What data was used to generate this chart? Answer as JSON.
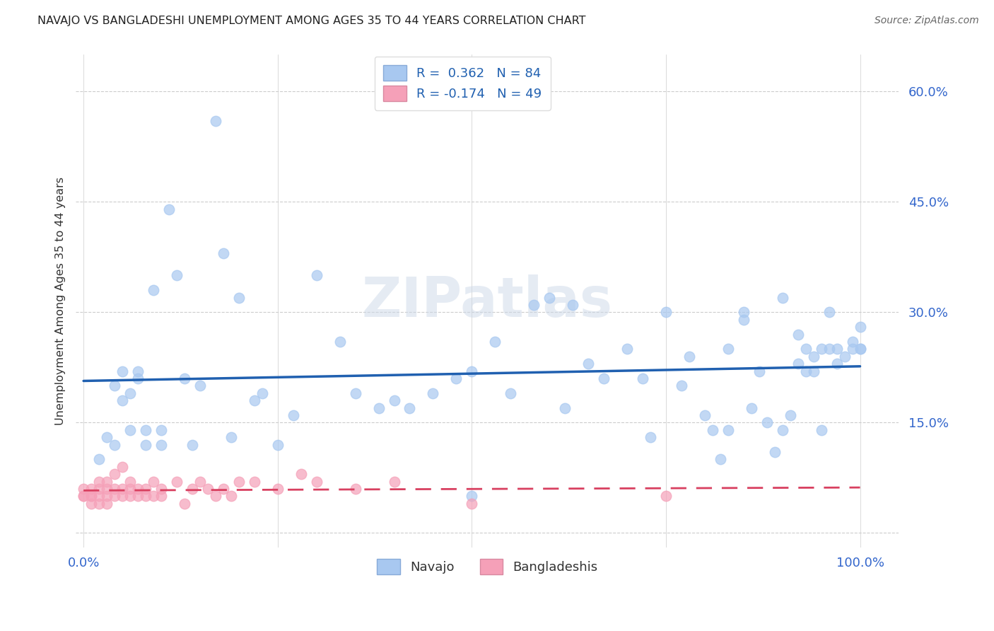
{
  "title": "NAVAJO VS BANGLADESHI UNEMPLOYMENT AMONG AGES 35 TO 44 YEARS CORRELATION CHART",
  "source": "Source: ZipAtlas.com",
  "ylabel_label": "Unemployment Among Ages 35 to 44 years",
  "navajo_color": "#a8c8f0",
  "bangladeshi_color": "#f5a0b8",
  "navajo_line_color": "#2060b0",
  "bangladeshi_line_color": "#d84060",
  "watermark_text": "ZIPatlas",
  "navajo_x": [
    2,
    3,
    4,
    4,
    5,
    5,
    6,
    6,
    7,
    7,
    8,
    8,
    9,
    10,
    10,
    11,
    12,
    13,
    14,
    15,
    17,
    18,
    19,
    20,
    22,
    23,
    25,
    27,
    30,
    33,
    35,
    38,
    40,
    42,
    45,
    48,
    50,
    50,
    53,
    55,
    58,
    60,
    62,
    63,
    65,
    67,
    70,
    72,
    73,
    75,
    77,
    78,
    80,
    81,
    82,
    83,
    83,
    85,
    85,
    86,
    87,
    88,
    89,
    90,
    90,
    91,
    92,
    92,
    93,
    93,
    94,
    94,
    95,
    95,
    96,
    96,
    97,
    97,
    98,
    99,
    99,
    100,
    100,
    100
  ],
  "navajo_y": [
    10,
    13,
    12,
    20,
    22,
    18,
    14,
    19,
    22,
    21,
    12,
    14,
    33,
    12,
    14,
    44,
    35,
    21,
    12,
    20,
    56,
    38,
    13,
    32,
    18,
    19,
    12,
    16,
    35,
    26,
    19,
    17,
    18,
    17,
    19,
    21,
    22,
    5,
    26,
    19,
    31,
    32,
    17,
    31,
    23,
    21,
    25,
    21,
    13,
    30,
    20,
    24,
    16,
    14,
    10,
    14,
    25,
    29,
    30,
    17,
    22,
    15,
    11,
    14,
    32,
    16,
    23,
    27,
    25,
    22,
    22,
    24,
    25,
    14,
    30,
    25,
    23,
    25,
    24,
    26,
    25,
    25,
    25,
    28
  ],
  "bangladeshi_x": [
    0,
    0,
    0,
    1,
    1,
    1,
    1,
    2,
    2,
    2,
    2,
    3,
    3,
    3,
    3,
    4,
    4,
    4,
    5,
    5,
    5,
    6,
    6,
    6,
    7,
    7,
    8,
    8,
    9,
    9,
    10,
    10,
    12,
    13,
    14,
    15,
    16,
    17,
    18,
    19,
    20,
    22,
    25,
    28,
    30,
    35,
    40,
    50,
    75
  ],
  "bangladeshi_y": [
    5,
    5,
    6,
    4,
    5,
    5,
    6,
    4,
    5,
    6,
    7,
    4,
    5,
    6,
    7,
    5,
    6,
    8,
    5,
    6,
    9,
    5,
    6,
    7,
    5,
    6,
    5,
    6,
    5,
    7,
    5,
    6,
    7,
    4,
    6,
    7,
    6,
    5,
    6,
    5,
    7,
    7,
    6,
    8,
    7,
    6,
    7,
    4,
    5
  ],
  "xlim": [
    -1,
    105
  ],
  "ylim": [
    -2,
    65
  ],
  "xticks": [
    0,
    25,
    50,
    75,
    100
  ],
  "xticklabels": [
    "0.0%",
    "",
    "",
    "",
    "100.0%"
  ],
  "yticks": [
    0,
    15,
    30,
    45,
    60
  ],
  "yticklabels": [
    "",
    "15.0%",
    "30.0%",
    "45.0%",
    "60.0%"
  ],
  "tick_color": "#3366cc",
  "grid_color": "#cccccc",
  "legend_r_navajo": "R =  0.362",
  "legend_n_navajo": "N = 84",
  "legend_r_bangladeshi": "R = -0.174",
  "legend_n_bangladeshi": "N = 49"
}
